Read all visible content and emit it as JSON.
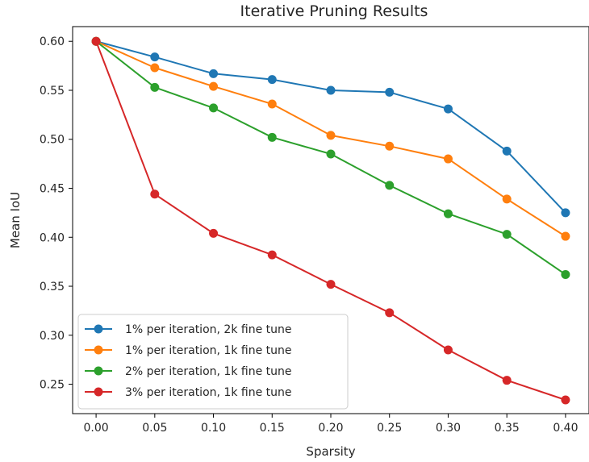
{
  "chart_data": {
    "type": "line",
    "title": "Iterative Pruning Results",
    "xlabel": "Sparsity",
    "ylabel": "Mean IoU",
    "x": [
      0.0,
      0.05,
      0.1,
      0.15,
      0.2,
      0.25,
      0.3,
      0.35,
      0.4
    ],
    "xlim": [
      -0.02,
      0.42
    ],
    "ylim": [
      0.22,
      0.615
    ],
    "xticks": [
      "0.00",
      "0.05",
      "0.10",
      "0.15",
      "0.20",
      "0.25",
      "0.30",
      "0.35",
      "0.40"
    ],
    "yticks": [
      "0.25",
      "0.30",
      "0.35",
      "0.40",
      "0.45",
      "0.50",
      "0.55",
      "0.60"
    ],
    "grid": false,
    "legend_position": "lower-left",
    "series": [
      {
        "name": "1% per iteration, 2k fine tune",
        "color": "#1f77b4",
        "values": [
          0.6,
          0.584,
          0.567,
          0.561,
          0.55,
          0.548,
          0.531,
          0.488,
          0.425
        ]
      },
      {
        "name": "1% per iteration, 1k fine tune",
        "color": "#ff7f0e",
        "values": [
          0.6,
          0.573,
          0.554,
          0.536,
          0.504,
          0.493,
          0.48,
          0.439,
          0.401
        ]
      },
      {
        "name": "2% per iteration, 1k fine tune",
        "color": "#2ca02c",
        "values": [
          0.6,
          0.553,
          0.532,
          0.502,
          0.485,
          0.453,
          0.424,
          0.403,
          0.362
        ]
      },
      {
        "name": "3% per iteration, 1k fine tune",
        "color": "#d62728",
        "values": [
          0.6,
          0.444,
          0.404,
          0.382,
          0.352,
          0.323,
          0.285,
          0.254,
          0.234
        ]
      }
    ]
  }
}
